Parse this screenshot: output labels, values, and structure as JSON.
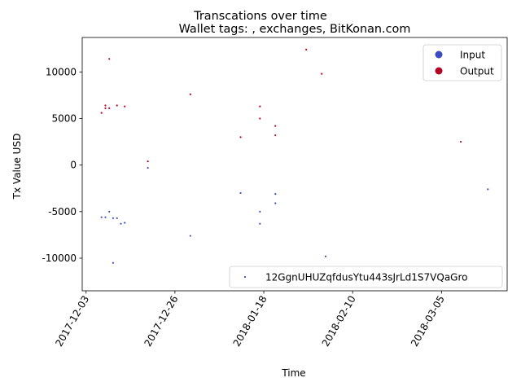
{
  "chart_data": {
    "type": "scatter",
    "suptitle": "Transcations over time",
    "title": "Wallet tags: , exchanges, BitKonan.com",
    "xlabel": "Time",
    "ylabel": "Tx Value USD",
    "xlim": [
      "2017-12-02",
      "2018-03-22"
    ],
    "ylim": [
      -13500,
      13700
    ],
    "x_ticks": [
      "2017-12-03",
      "2017-12-26",
      "2018-01-18",
      "2018-02-10",
      "2018-03-05"
    ],
    "y_ticks": [
      -10000,
      -5000,
      0,
      5000,
      10000
    ],
    "legend": {
      "placement": "top-right",
      "entries": [
        {
          "label": "Input",
          "color": "#3b4cc0"
        },
        {
          "label": "Output",
          "color": "#b40426"
        }
      ]
    },
    "legend2": {
      "placement": "bottom-right",
      "label": "12GgnUHUZqfdusYtu443sJrLd1S7VQaGro",
      "color": "#3b4cc0"
    },
    "series": [
      {
        "name": "Input",
        "color": "#3b4cc0",
        "points": [
          {
            "x": "2017-12-07",
            "y": -5600
          },
          {
            "x": "2017-12-08",
            "y": -5600
          },
          {
            "x": "2017-12-09",
            "y": -5000
          },
          {
            "x": "2017-12-10",
            "y": -5700
          },
          {
            "x": "2017-12-11",
            "y": -5700
          },
          {
            "x": "2017-12-10",
            "y": -10500
          },
          {
            "x": "2017-12-12",
            "y": -6300
          },
          {
            "x": "2017-12-13",
            "y": -6200
          },
          {
            "x": "2017-12-19",
            "y": -300
          },
          {
            "x": "2017-12-30",
            "y": -7600
          },
          {
            "x": "2018-01-12",
            "y": -3000
          },
          {
            "x": "2018-01-17",
            "y": -5000
          },
          {
            "x": "2018-01-17",
            "y": -6300
          },
          {
            "x": "2018-01-21",
            "y": -3100
          },
          {
            "x": "2018-01-21",
            "y": -4100
          },
          {
            "x": "2018-02-03",
            "y": -9800
          },
          {
            "x": "2018-03-17",
            "y": -2600
          }
        ]
      },
      {
        "name": "Output",
        "color": "#b40426",
        "points": [
          {
            "x": "2017-12-07",
            "y": 5600
          },
          {
            "x": "2017-12-08",
            "y": 6400
          },
          {
            "x": "2017-12-08",
            "y": 6100
          },
          {
            "x": "2017-12-09",
            "y": 6100
          },
          {
            "x": "2017-12-09",
            "y": 11400
          },
          {
            "x": "2017-12-11",
            "y": 6400
          },
          {
            "x": "2017-12-13",
            "y": 6300
          },
          {
            "x": "2017-12-19",
            "y": 400
          },
          {
            "x": "2017-12-30",
            "y": 7600
          },
          {
            "x": "2018-01-12",
            "y": 3000
          },
          {
            "x": "2018-01-17",
            "y": 6300
          },
          {
            "x": "2018-01-17",
            "y": 5000
          },
          {
            "x": "2018-01-21",
            "y": 4200
          },
          {
            "x": "2018-01-21",
            "y": 3200
          },
          {
            "x": "2018-01-29",
            "y": 12400
          },
          {
            "x": "2018-02-02",
            "y": 9800
          },
          {
            "x": "2018-03-10",
            "y": 2500
          }
        ]
      }
    ]
  }
}
